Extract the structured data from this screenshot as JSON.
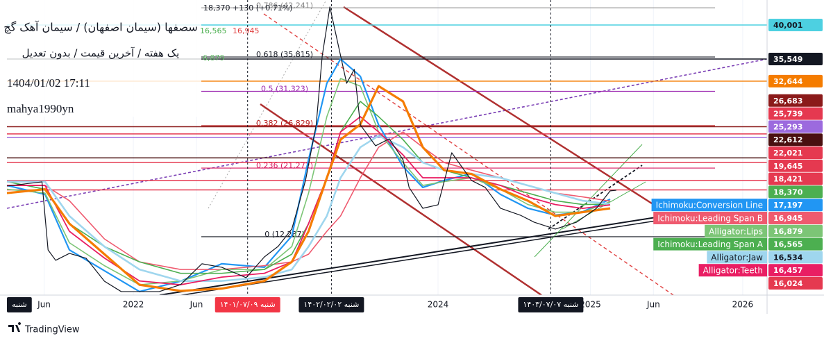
{
  "chart_data": {
    "type": "line",
    "title": "سصفها (سیمان اصفهان) / سیمان آهک گچ",
    "subtitle": "یک هفته / آخرین قیمت / بدون تعدیل",
    "timestamp": "1404/01/02 17:11",
    "author": "mahya1990yn",
    "status": "18,370  +130 (+0.71%)",
    "legend_fragments": [
      {
        "label": "16,565",
        "color": "#4caf50"
      },
      {
        "label": "16,945",
        "color": "#e04040"
      },
      {
        "label": "6,879",
        "color": "#66bb6a"
      }
    ],
    "brand": "TradingView",
    "grid": true,
    "xlim": [
      2021.17,
      2026.16
    ],
    "ylim": [
      4650,
      43270
    ],
    "xticks": [
      {
        "value": 2021.414,
        "label": "Jun"
      },
      {
        "value": 2022,
        "label": "2022"
      },
      {
        "value": 2022.414,
        "label": "Jun"
      },
      {
        "value": 2024,
        "label": "2024"
      },
      {
        "value": 2025,
        "label": "2025"
      },
      {
        "value": 2025.414,
        "label": "Jun"
      },
      {
        "value": 2026,
        "label": "2026"
      }
    ],
    "price": {
      "color": "#131722",
      "x": [
        2021.17,
        2021.4,
        2021.44,
        2021.49,
        2021.58,
        2021.69,
        2021.81,
        2021.92,
        2022.17,
        2022.31,
        2022.45,
        2022.58,
        2022.74,
        2022.86,
        2022.95,
        2023.04,
        2023.13,
        2023.2,
        2023.24,
        2023.29,
        2023.36,
        2023.4,
        2023.45,
        2023.49,
        2023.59,
        2023.68,
        2023.77,
        2023.81,
        2023.9,
        2024.0,
        2024.09,
        2024.22,
        2024.31,
        2024.41,
        2024.54,
        2024.63,
        2024.77,
        2024.91,
        2025.04,
        2025.13,
        2025.17
      ],
      "values": [
        18920,
        19470,
        10560,
        9200,
        10110,
        9470,
        6470,
        5110,
        5110,
        6020,
        8750,
        8290,
        6930,
        9650,
        11020,
        13290,
        19650,
        26920,
        36000,
        42360,
        36000,
        32370,
        34190,
        26920,
        24190,
        25100,
        22370,
        18740,
        16010,
        16470,
        23280,
        19650,
        18740,
        16010,
        15110,
        14200,
        13290,
        14200,
        16010,
        18290,
        18370
      ]
    },
    "x": [
      2021.17,
      2021.42,
      2021.58,
      2021.81,
      2022.04,
      2022.31,
      2022.58,
      2022.86,
      2023.04,
      2023.15,
      2023.27,
      2023.36,
      2023.49,
      2023.61,
      2023.77,
      2023.9,
      2024.04,
      2024.22,
      2024.41,
      2024.59,
      2024.77,
      2024.95,
      2025.13
    ],
    "series": [
      {
        "name": "Ichimoku:Conversion Line",
        "color": "#2196f3",
        "values": [
          19000,
          17830,
          10560,
          7840,
          5110,
          6470,
          8750,
          8290,
          12380,
          22370,
          32370,
          35550,
          33280,
          26920,
          21470,
          18740,
          19650,
          20560,
          17830,
          16010,
          15110,
          15560,
          17197
        ]
      },
      {
        "name": "Ichimoku:Leading Span B",
        "color": "#ef5a6f",
        "values": [
          19000,
          19000,
          17000,
          12000,
          9000,
          8000,
          8000,
          8500,
          9000,
          10000,
          13000,
          15000,
          20000,
          24000,
          26000,
          24000,
          22000,
          21000,
          20000,
          19000,
          18000,
          17500,
          16945
        ]
      },
      {
        "name": "Alligator:Lips",
        "color": "#7cc576",
        "values": [
          18500,
          18000,
          11500,
          8500,
          6000,
          6500,
          8000,
          8000,
          11000,
          18000,
          28000,
          33000,
          32000,
          26000,
          22000,
          19000,
          19500,
          20000,
          18500,
          16500,
          15500,
          15500,
          16879
        ]
      },
      {
        "name": "Ichimoku:Leading Span A",
        "color": "#4caf50",
        "values": [
          19500,
          18500,
          14000,
          11000,
          9000,
          7500,
          7500,
          8000,
          10000,
          14000,
          20000,
          26000,
          30000,
          28000,
          25000,
          22000,
          21000,
          20000,
          19000,
          18000,
          17000,
          16500,
          16565
        ]
      },
      {
        "name": "Alligator:Jaw",
        "color": "#9fd6ee",
        "values": [
          19500,
          19500,
          15000,
          11000,
          8000,
          6500,
          6500,
          7000,
          8000,
          11000,
          15000,
          20000,
          24000,
          25500,
          24000,
          22000,
          21000,
          20500,
          20000,
          19000,
          18000,
          17000,
          16534
        ]
      },
      {
        "name": "Alligator:Teeth",
        "color": "#e91e63",
        "values": [
          19000,
          19000,
          13000,
          9500,
          6500,
          6000,
          7000,
          7500,
          9000,
          14000,
          20000,
          26000,
          28000,
          26000,
          23000,
          20000,
          20000,
          20000,
          19000,
          17500,
          16500,
          16000,
          16457
        ]
      },
      {
        "color": "#f57c00",
        "values": [
          18000,
          18500,
          14000,
          10000,
          6000,
          5200,
          5500,
          6500,
          9000,
          13000,
          20000,
          25000,
          27000,
          32000,
          30000,
          24000,
          21000,
          20500,
          18500,
          17000,
          15000,
          15500,
          16000
        ]
      }
    ],
    "fib": [
      {
        "value": 42241,
        "label": "0.786 (42,241)",
        "color": "#888888"
      },
      {
        "value": 35815,
        "label": "0.618 (35,815)",
        "color": "#131722"
      },
      {
        "value": 31323,
        "label": "0.5 (31,323)",
        "color": "#9c27b0"
      },
      {
        "value": 26829,
        "label": "0.382 (26,829)",
        "color": "#b71c1c"
      },
      {
        "value": 21272,
        "label": "0.236 (21,272)",
        "color": "#d81b60"
      },
      {
        "value": 12287,
        "label": "0 (12,287)",
        "color": "#131722"
      }
    ],
    "price_tags": [
      {
        "value": 40001,
        "label": "40,001",
        "color": "#4dd0e1",
        "line": true
      },
      {
        "value": 35549,
        "label": "35,549",
        "color": "#131722",
        "line": true
      },
      {
        "value": 32644,
        "label": "32,644",
        "color": "#f57c00",
        "line": true
      },
      {
        "value": 26683,
        "label": "26,683",
        "color": "#8b1a1a",
        "line": true
      },
      {
        "value": 25739,
        "label": "25,739",
        "color": "#e53950",
        "line": true
      },
      {
        "value": 25293,
        "label": "25,293",
        "color": "#9c6ade",
        "line": true
      },
      {
        "value": 22612,
        "label": "22,612",
        "color": "#4a1010",
        "line": true
      },
      {
        "value": 22021,
        "label": "22,021",
        "color": "#e53950",
        "line": true
      },
      {
        "value": 19645,
        "label": "19,645",
        "color": "#e53950",
        "line": true
      },
      {
        "value": 18421,
        "label": "18,421",
        "color": "#e53950",
        "line": true
      },
      {
        "value": 18370,
        "label": "18,370",
        "color": "#4caf50"
      },
      {
        "value": 17197,
        "label": "17,197",
        "color": "#2196f3"
      },
      {
        "value": 16945,
        "label": "16,945",
        "color": "#ef5a6f"
      },
      {
        "value": 16879,
        "label": "16,879",
        "color": "#7cc576"
      },
      {
        "value": 16565,
        "label": "16,565",
        "color": "#4caf50"
      },
      {
        "value": 16534,
        "label": "16,534",
        "color": "#9fd6ee"
      },
      {
        "value": 16457,
        "label": "16,457",
        "color": "#e91e63"
      },
      {
        "value": 16024,
        "label": "16,024",
        "color": "#e53950"
      }
    ],
    "time_tags": [
      {
        "x": 2021.17,
        "label": "شنبه",
        "color": "#131722"
      },
      {
        "x": 2022.75,
        "label": "شنبه ۱۴۰۱/۰۷/۰۹",
        "color": "#f23645"
      },
      {
        "x": 2023.3,
        "label": "شنبه ۱۴۰۲/۰۲/۰۲",
        "color": "#131722"
      },
      {
        "x": 2024.74,
        "label": "شنبه ۱۴۰۳/۰۷/۰۷",
        "color": "#131722"
      }
    ]
  }
}
